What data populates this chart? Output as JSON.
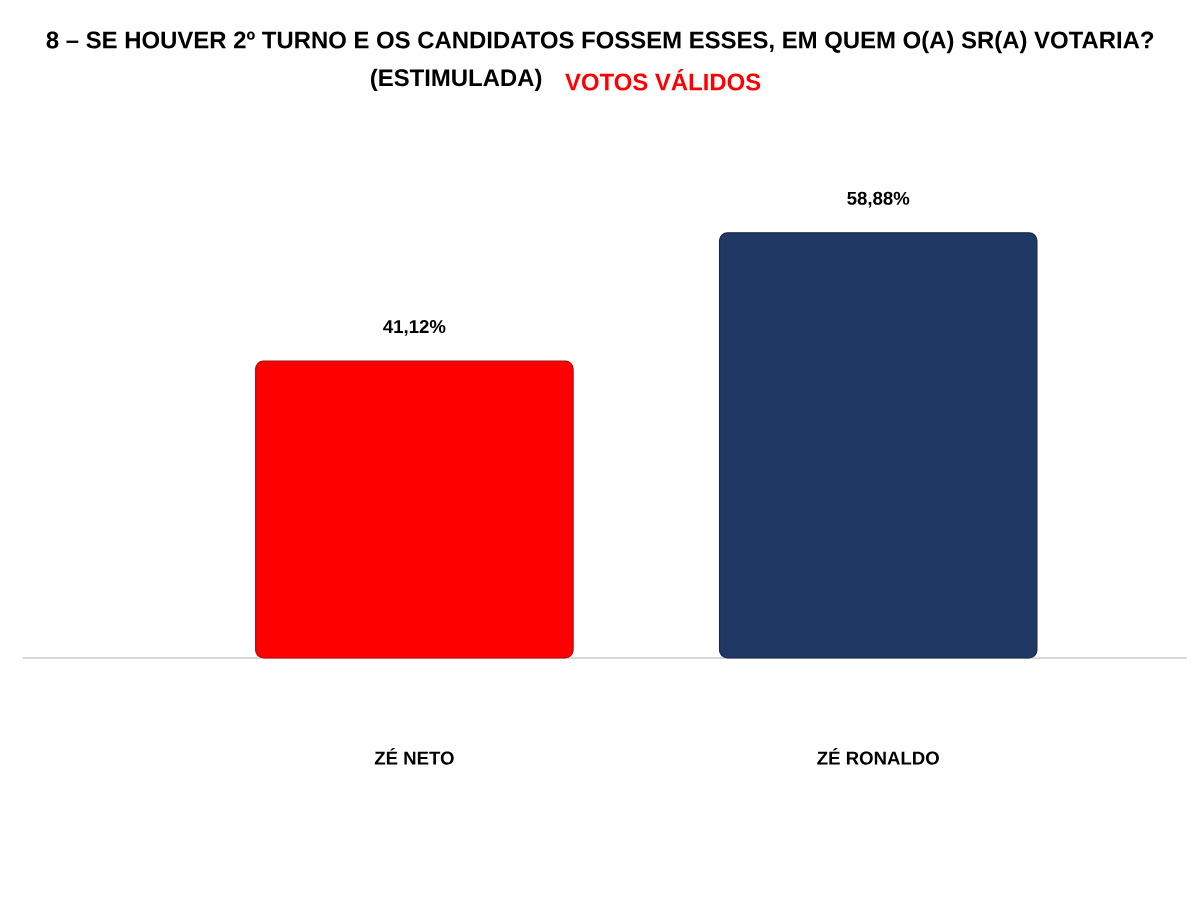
{
  "chart_data": {
    "type": "bar",
    "title": "8 – SE HOUVER 2º TURNO E OS CANDIDATOS FOSSEM ESSES, EM QUEM O(A) SR(A) VOTARIA?",
    "subtitle": "(ESTIMULADA)",
    "annotations": [
      "VOTOS VÁLIDOS"
    ],
    "categories": [
      "ZÉ NETO",
      "ZÉ RONALDO"
    ],
    "values": [
      41.12,
      58.88
    ],
    "colors": [
      "#ff0000",
      "#1f3864"
    ],
    "value_labels": [
      "41,12%",
      "58,88%"
    ]
  }
}
